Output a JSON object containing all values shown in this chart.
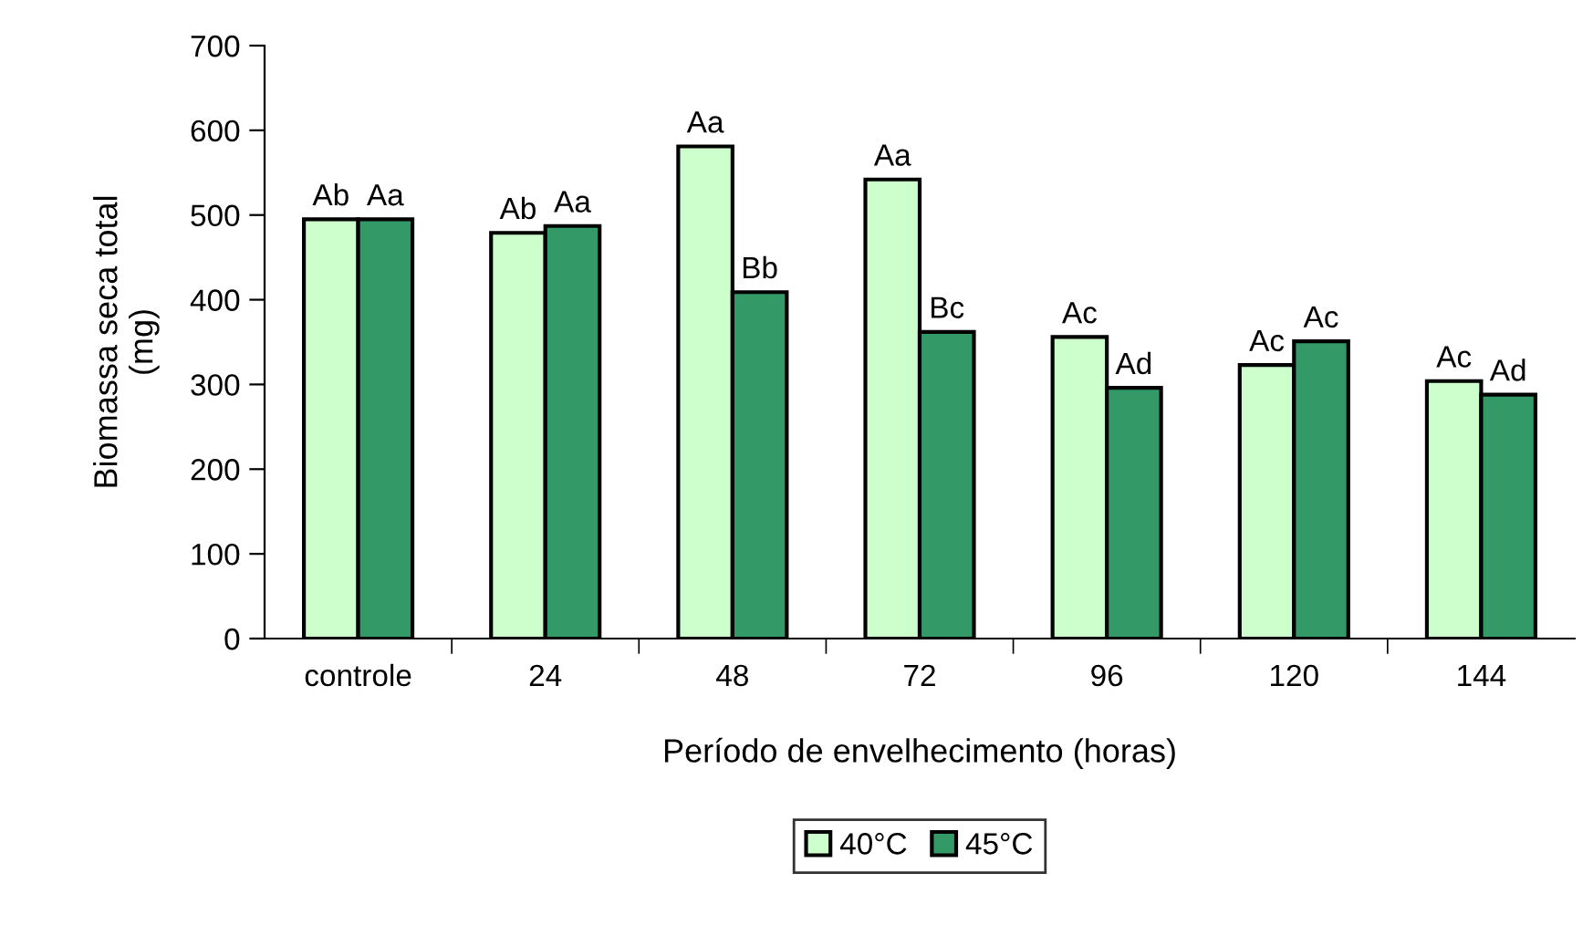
{
  "chart_data": {
    "type": "bar",
    "xlabel": "Período de envelhecimento (horas)",
    "ylabel": "Biomassa seca total\n(mg)",
    "categories": [
      "controle",
      "24",
      "48",
      "72",
      "96",
      "120",
      "144"
    ],
    "series": [
      {
        "name": "40°C",
        "color": "#ccffcc",
        "values": [
          495,
          479,
          581,
          542,
          356,
          323,
          304
        ],
        "value_labels": [
          "Ab",
          "Ab",
          "Aa",
          "Aa",
          "Ac",
          "Ac",
          "Ac"
        ]
      },
      {
        "name": "45°C",
        "color": "#339966",
        "values": [
          495,
          487,
          409,
          362,
          296,
          351,
          288
        ],
        "value_labels": [
          "Aa",
          "Aa",
          "Bb",
          "Bc",
          "Ad",
          "Ac",
          "Ad"
        ]
      }
    ],
    "ylim": [
      0,
      700
    ],
    "yticks": [
      0,
      100,
      200,
      300,
      400,
      500,
      600,
      700
    ],
    "grid": false,
    "legend": "bottom"
  }
}
